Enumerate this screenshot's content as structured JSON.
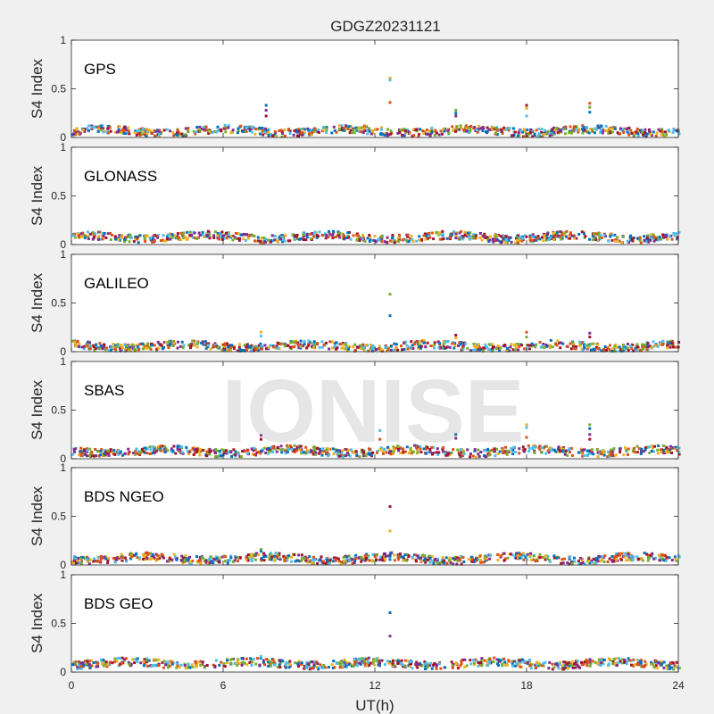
{
  "title": "GDGZ20231121",
  "watermark": "IONISE",
  "xlabel": "UT(h)",
  "colors": [
    "#0072bd",
    "#d95319",
    "#edb120",
    "#7e2f8e",
    "#77ac30",
    "#4dbeee",
    "#a2142f"
  ],
  "chart_data": [
    {
      "type": "scatter",
      "label": "GPS",
      "ylabel": "S4 Index",
      "xlim": [
        0,
        24
      ],
      "ylim": [
        0,
        1
      ],
      "xticks": [
        "0",
        "6",
        "12",
        "18",
        "24"
      ],
      "yticks": [
        "0",
        "0.5",
        "1"
      ],
      "baseline": 0.08,
      "spikes": [
        {
          "x": 7.7,
          "values": [
            0.33,
            0.28,
            0.22
          ]
        },
        {
          "x": 12.6,
          "values": [
            0.61,
            0.59,
            0.36
          ]
        },
        {
          "x": 15.2,
          "values": [
            0.28,
            0.25,
            0.22
          ]
        },
        {
          "x": 18.0,
          "values": [
            0.33,
            0.3,
            0.22
          ]
        },
        {
          "x": 20.5,
          "values": [
            0.35,
            0.31,
            0.26
          ]
        }
      ]
    },
    {
      "type": "scatter",
      "label": "GLONASS",
      "ylabel": "S4 Index",
      "xlim": [
        0,
        24
      ],
      "ylim": [
        0,
        1
      ],
      "xticks": [
        "0",
        "6",
        "12",
        "18",
        "24"
      ],
      "yticks": [
        "0",
        "0.5",
        "1"
      ],
      "baseline": 0.09,
      "spikes": []
    },
    {
      "type": "scatter",
      "label": "GALILEO",
      "ylabel": "S4 Index",
      "xlim": [
        0,
        24
      ],
      "ylim": [
        0,
        1
      ],
      "xticks": [
        "0",
        "6",
        "12",
        "18",
        "24"
      ],
      "yticks": [
        "0",
        "0.5",
        "1"
      ],
      "baseline": 0.07,
      "spikes": [
        {
          "x": 7.5,
          "values": [
            0.2,
            0.16
          ]
        },
        {
          "x": 12.6,
          "values": [
            0.59,
            0.37
          ]
        },
        {
          "x": 15.2,
          "values": [
            0.17,
            0.14
          ]
        },
        {
          "x": 18.0,
          "values": [
            0.2,
            0.15
          ]
        },
        {
          "x": 20.5,
          "values": [
            0.19,
            0.15
          ]
        }
      ]
    },
    {
      "type": "scatter",
      "label": "SBAS",
      "ylabel": "S4 Index",
      "xlim": [
        0,
        24
      ],
      "ylim": [
        0,
        1
      ],
      "xticks": [
        "0",
        "6",
        "12",
        "18",
        "24"
      ],
      "yticks": [
        "0",
        "0.5",
        "1"
      ],
      "baseline": 0.09,
      "spikes": [
        {
          "x": 7.5,
          "values": [
            0.24,
            0.2
          ]
        },
        {
          "x": 12.2,
          "values": [
            0.29,
            0.2
          ]
        },
        {
          "x": 15.2,
          "values": [
            0.25,
            0.21
          ]
        },
        {
          "x": 18.0,
          "values": [
            0.35,
            0.32,
            0.22
          ]
        },
        {
          "x": 20.5,
          "values": [
            0.35,
            0.31,
            0.25,
            0.2
          ]
        }
      ]
    },
    {
      "type": "scatter",
      "label": "BDS NGEO",
      "ylabel": "S4 Index",
      "xlim": [
        0,
        24
      ],
      "ylim": [
        0,
        1
      ],
      "xticks": [
        "0",
        "6",
        "12",
        "18",
        "24"
      ],
      "yticks": [
        "0",
        "0.5",
        "1"
      ],
      "baseline": 0.08,
      "spikes": [
        {
          "x": 7.5,
          "values": [
            0.16,
            0.14
          ]
        },
        {
          "x": 12.6,
          "values": [
            0.6,
            0.35
          ]
        }
      ]
    },
    {
      "type": "scatter",
      "label": "BDS GEO",
      "ylabel": "S4 Index",
      "xlim": [
        0,
        24
      ],
      "ylim": [
        0,
        1
      ],
      "xticks": [
        "0",
        "6",
        "12",
        "18",
        "24"
      ],
      "yticks": [
        "0",
        "0.5",
        "1"
      ],
      "baseline": 0.1,
      "spikes": [
        {
          "x": 7.5,
          "values": [
            0.16
          ]
        },
        {
          "x": 12.6,
          "values": [
            0.61,
            0.37
          ]
        }
      ]
    }
  ]
}
